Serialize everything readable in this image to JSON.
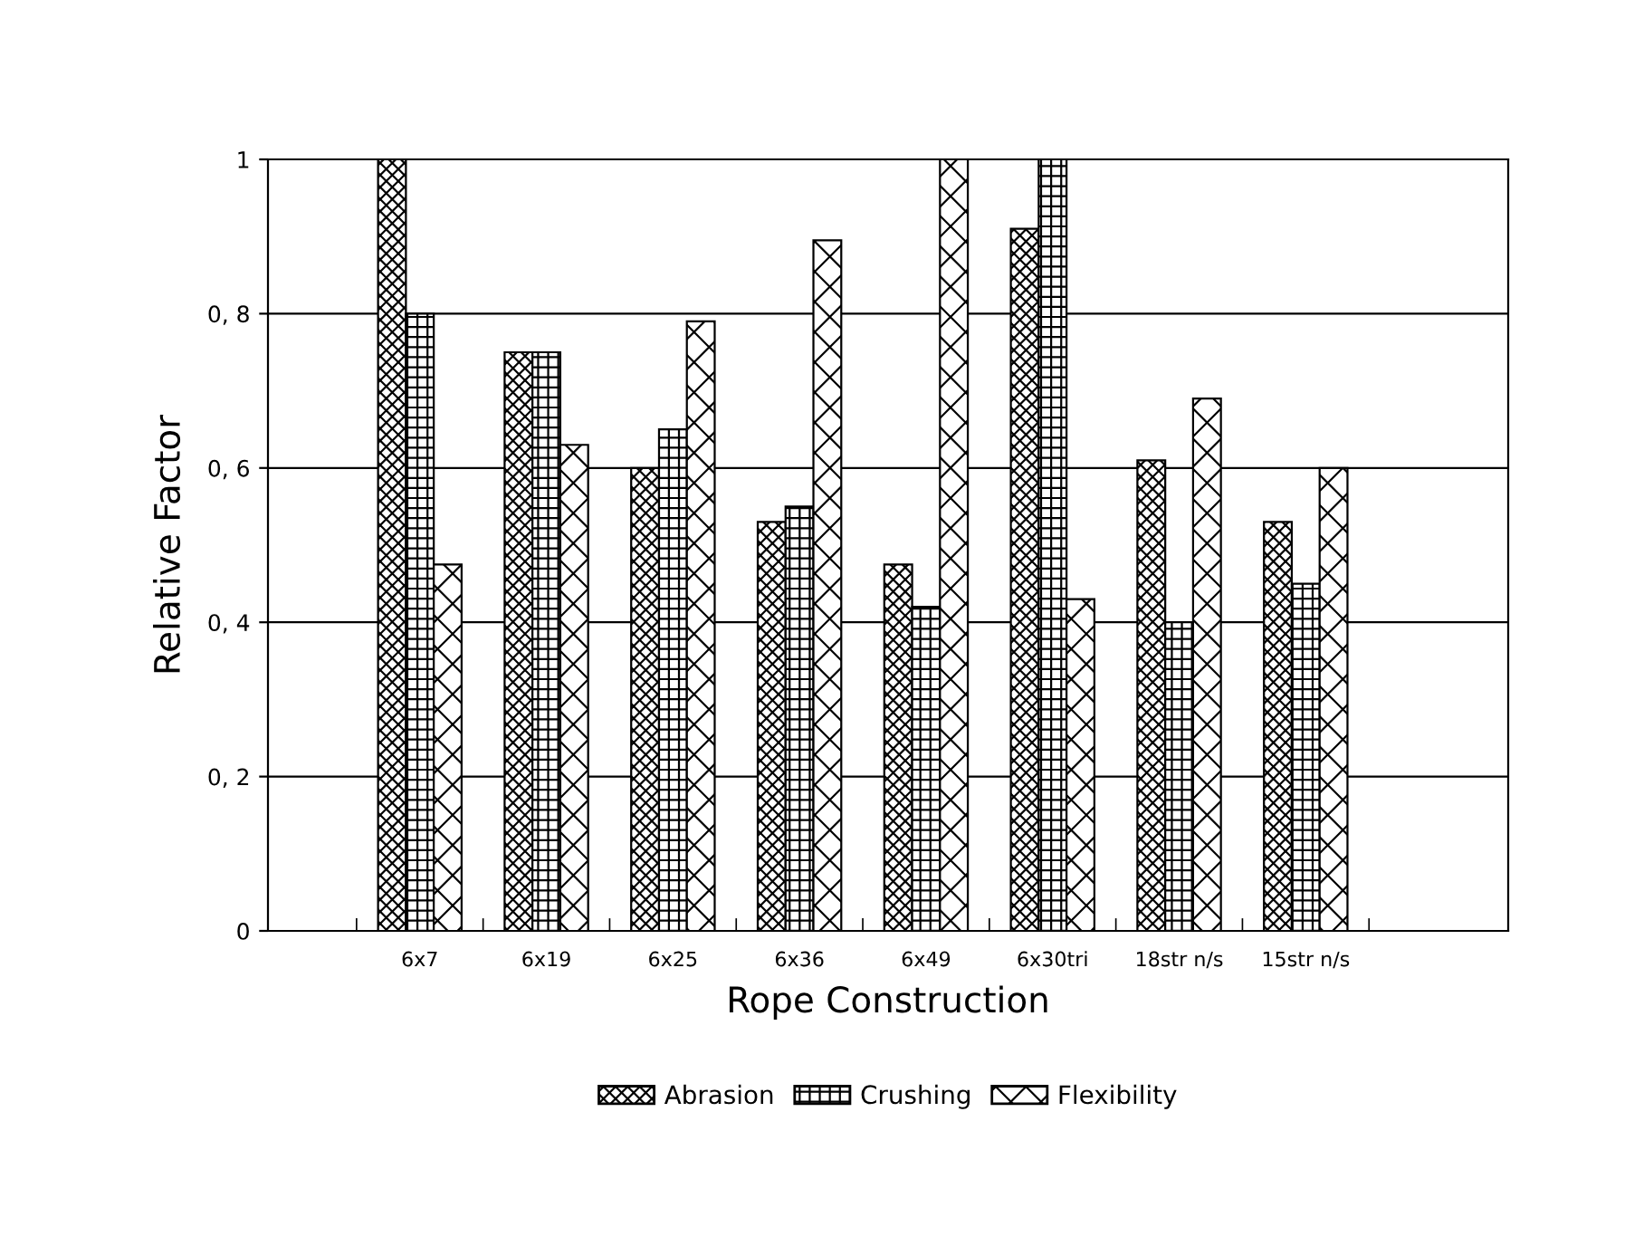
{
  "chart_data": {
    "type": "bar",
    "xlabel": "Rope Construction",
    "ylabel": "Relative Factor",
    "categories": [
      "6x7",
      "6x19",
      "6x25",
      "6x36",
      "6x49",
      "6x30tri",
      "18str n/s",
      "15str n/s"
    ],
    "series": [
      {
        "name": "Abrasion",
        "color": "#000000",
        "values": [
          1.0,
          0.75,
          0.6,
          0.53,
          0.475,
          0.91,
          0.61,
          0.53
        ]
      },
      {
        "name": "Crushing",
        "color": "#000000",
        "values": [
          0.8,
          0.75,
          0.65,
          0.55,
          0.42,
          1.0,
          0.4,
          0.45
        ]
      },
      {
        "name": "Flexibility",
        "color": "#000000",
        "values": [
          0.475,
          0.63,
          0.79,
          0.895,
          1.0,
          0.43,
          0.69,
          0.6
        ]
      }
    ],
    "ylim": [
      0,
      1
    ],
    "yticks": [
      0,
      {
        "value": 0.2,
        "label": "0, 2"
      },
      {
        "value": 0.4,
        "label": "0, 4"
      },
      {
        "value": 0.6,
        "label": "0, 6"
      },
      {
        "value": 0.8,
        "label": "0, 8"
      },
      1
    ],
    "grid": "y",
    "legend": "bottom"
  }
}
